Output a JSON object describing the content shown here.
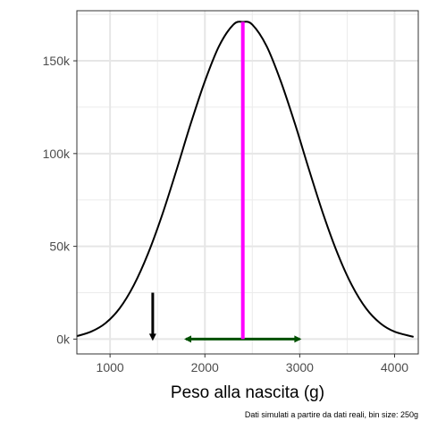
{
  "chart_data": {
    "type": "line",
    "title": "",
    "xlabel": "Peso alla nascita (g)",
    "ylabel": "",
    "caption": "Dati simulati a partire da dati reali, bin size: 250g",
    "xlim": [
      650,
      4250
    ],
    "ylim": [
      -8000,
      177000
    ],
    "x_ticks": [
      1000,
      2000,
      3000,
      4000
    ],
    "x_tick_labels": [
      "1000",
      "2000",
      "3000",
      "4000"
    ],
    "y_ticks": [
      0,
      50000,
      100000,
      150000
    ],
    "y_tick_labels": [
      "0k",
      "50k",
      "100k",
      "150k"
    ],
    "grid": true,
    "series": [
      {
        "color": "#000000",
        "x": [
          650,
          800,
          950,
          1100,
          1250,
          1400,
          1550,
          1700,
          1850,
          2000,
          2150,
          2300,
          2400,
          2500,
          2650,
          2800,
          2950,
          3100,
          3250,
          3400,
          3550,
          3700,
          3850,
          4000,
          4200
        ],
        "y": [
          1600,
          4000,
          8500,
          16500,
          29000,
          46000,
          67000,
          91000,
          116000,
          139000,
          158000,
          169500,
          171000,
          169500,
          158000,
          139000,
          116000,
          91000,
          67000,
          46000,
          29000,
          16500,
          8500,
          4000,
          1200
        ]
      }
    ],
    "annotations": {
      "mean_line": {
        "x": 2400,
        "y_from": 0,
        "y_to": 171000,
        "color": "#ff00ff"
      },
      "range_arrow": {
        "x_from": 1800,
        "x_to": 3000,
        "y": 0,
        "color": "#005000"
      },
      "down_arrow": {
        "x": 1450,
        "y_from": 25000,
        "y_to": 0,
        "color": "#000000"
      }
    }
  }
}
